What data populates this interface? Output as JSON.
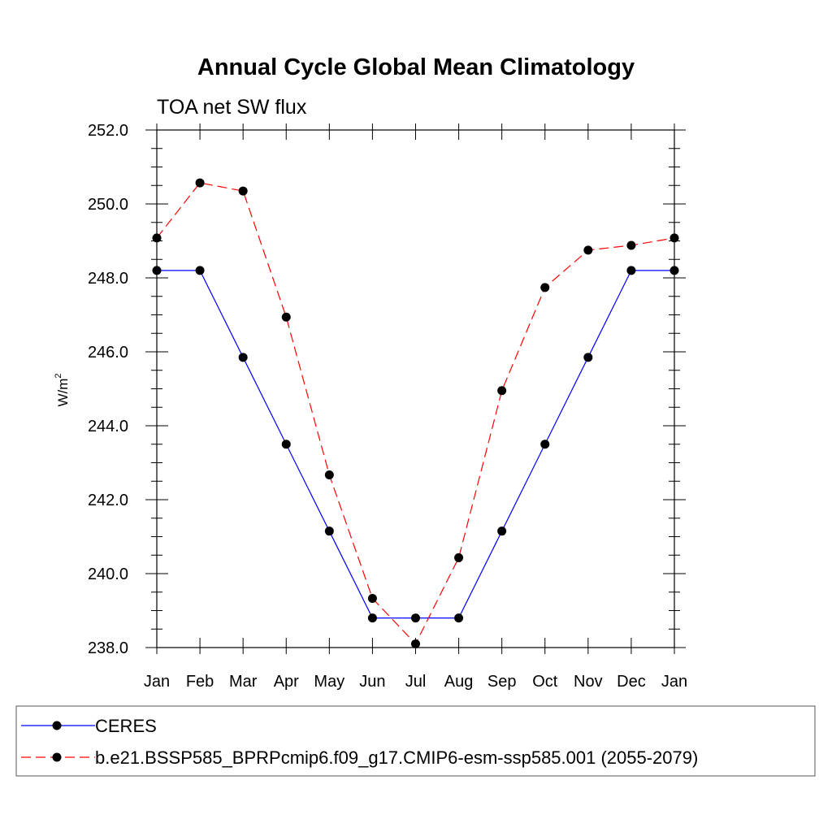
{
  "chart_data": {
    "type": "line",
    "title": "Annual Cycle Global Mean Climatology",
    "subtitle": "TOA net SW flux",
    "ylabel": "W/m",
    "ylabel_superscript": "2",
    "categories": [
      "Jan",
      "Feb",
      "Mar",
      "Apr",
      "May",
      "Jun",
      "Jul",
      "Aug",
      "Sep",
      "Oct",
      "Nov",
      "Dec",
      "Jan"
    ],
    "ylim": [
      238.0,
      252.0
    ],
    "yticks": [
      "238.0",
      "240.0",
      "242.0",
      "244.0",
      "246.0",
      "248.0",
      "250.0",
      "252.0"
    ],
    "grid": false,
    "legend_placement": "bottom",
    "series": [
      {
        "name": "CERES",
        "color": "#0000ff",
        "dash": "solid",
        "values": [
          248.2,
          248.2,
          245.85,
          243.5,
          241.15,
          238.8,
          238.8,
          238.8,
          241.15,
          243.5,
          245.85,
          248.2,
          248.2
        ]
      },
      {
        "name": "b.e21.BSSP585_BPRPcmip6.f09_g17.CMIP6-esm-ssp585.001 (2055-2079)",
        "color": "#ff0000",
        "dash": "dashed",
        "values": [
          249.08,
          250.57,
          250.35,
          246.94,
          242.67,
          239.33,
          238.1,
          240.43,
          244.95,
          247.74,
          248.75,
          248.88,
          249.08
        ]
      }
    ]
  }
}
